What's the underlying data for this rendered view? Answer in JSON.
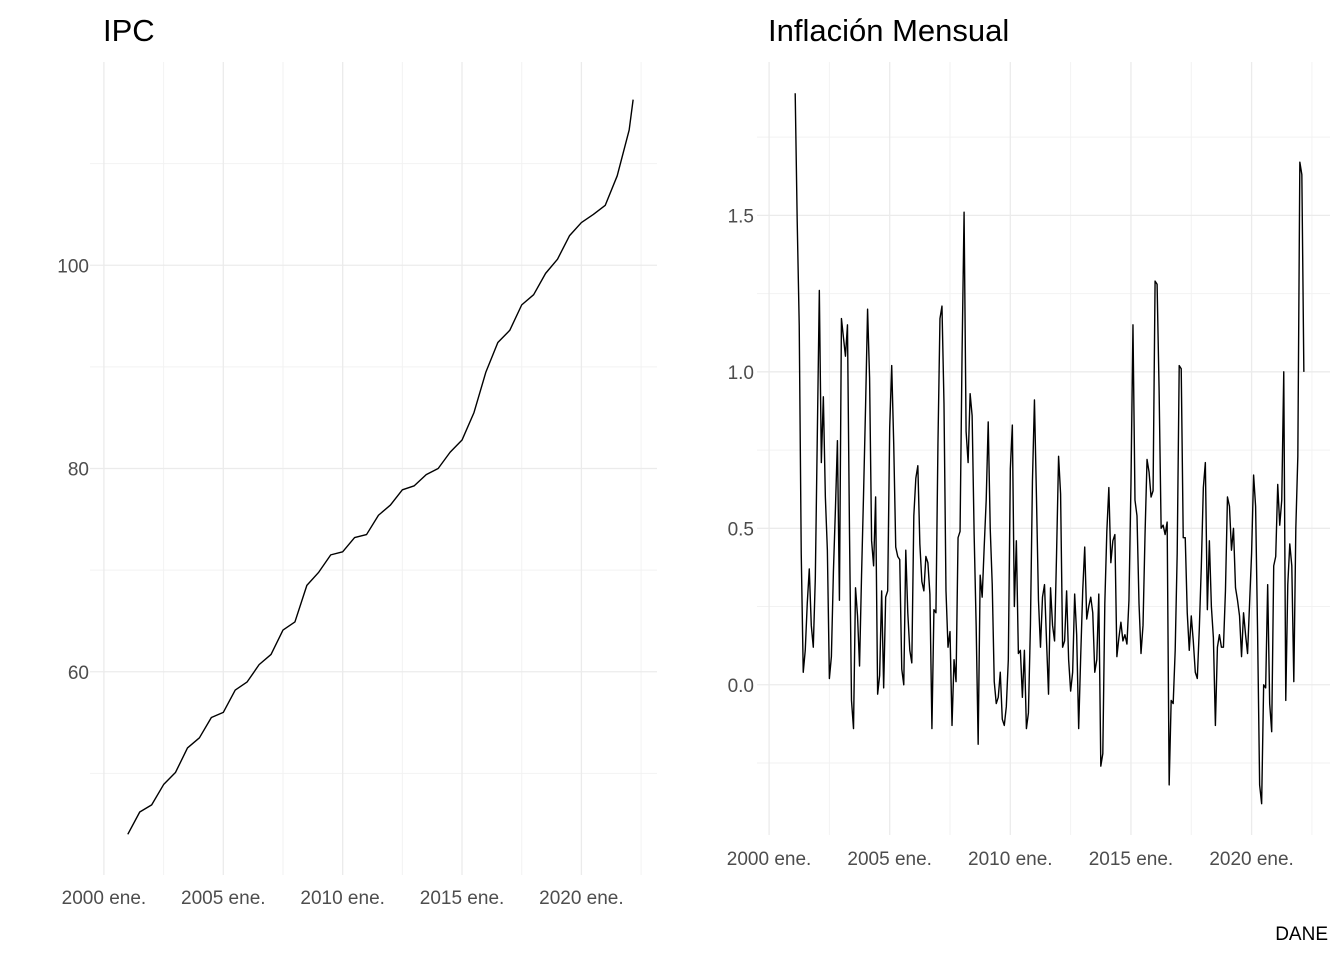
{
  "chart_data": [
    {
      "type": "line",
      "title": "IPC",
      "color": "#000000",
      "grid": true,
      "xlim": [
        "1999-06",
        "2023-03"
      ],
      "ylim": [
        40,
        120
      ],
      "yticks": [
        60,
        80,
        100
      ],
      "xticks": [
        {
          "value": "2000-01",
          "label": "2000 ene."
        },
        {
          "value": "2005-01",
          "label": "2005 ene."
        },
        {
          "value": "2010-01",
          "label": "2010 ene."
        },
        {
          "value": "2015-01",
          "label": "2015 ene."
        },
        {
          "value": "2020-01",
          "label": "2020 ene."
        }
      ],
      "x": [
        "2001-01",
        "2001-07",
        "2002-01",
        "2002-07",
        "2003-01",
        "2003-07",
        "2004-01",
        "2004-07",
        "2005-01",
        "2005-07",
        "2006-01",
        "2006-07",
        "2007-01",
        "2007-07",
        "2008-01",
        "2008-07",
        "2009-01",
        "2009-07",
        "2010-01",
        "2010-07",
        "2011-01",
        "2011-07",
        "2012-01",
        "2012-07",
        "2013-01",
        "2013-07",
        "2014-01",
        "2014-07",
        "2015-01",
        "2015-07",
        "2016-01",
        "2016-07",
        "2017-01",
        "2017-07",
        "2018-01",
        "2018-07",
        "2019-01",
        "2019-07",
        "2020-01",
        "2020-07",
        "2021-01",
        "2021-07",
        "2022-01",
        "2022-03"
      ],
      "values": [
        44.0,
        46.2,
        46.9,
        48.9,
        50.1,
        52.5,
        53.5,
        55.5,
        56.0,
        58.2,
        59.0,
        60.7,
        61.7,
        64.1,
        64.9,
        68.5,
        69.8,
        71.5,
        71.8,
        73.2,
        73.5,
        75.4,
        76.4,
        77.9,
        78.3,
        79.4,
        80.0,
        81.6,
        82.8,
        85.5,
        89.5,
        92.4,
        93.6,
        96.1,
        97.1,
        99.2,
        100.6,
        102.9,
        104.2,
        105.0,
        105.9,
        108.8,
        113.3,
        116.3
      ]
    },
    {
      "type": "line",
      "title": "Inflación Mensual",
      "caption": "DANE",
      "color": "#000000",
      "grid": true,
      "xlim": [
        "1999-07",
        "2023-04"
      ],
      "ylim": [
        -0.48,
        1.99
      ],
      "yticks": [
        {
          "value": 0,
          "label": "0.0"
        },
        0.5,
        {
          "value": 1,
          "label": "1.0"
        },
        1.5
      ],
      "xticks": [
        {
          "value": "2000-01",
          "label": "2000 ene."
        },
        {
          "value": "2005-01",
          "label": "2005 ene."
        },
        {
          "value": "2010-01",
          "label": "2010 ene."
        },
        {
          "value": "2015-01",
          "label": "2015 ene."
        },
        {
          "value": "2020-01",
          "label": "2020 ene."
        }
      ],
      "x": [
        "2001-02",
        "2001-03",
        "2001-04",
        "2001-05",
        "2001-06",
        "2001-07",
        "2001-08",
        "2001-09",
        "2001-10",
        "2001-11",
        "2001-12",
        "2002-01",
        "2002-02",
        "2002-03",
        "2002-04",
        "2002-05",
        "2002-06",
        "2002-07",
        "2002-08",
        "2002-09",
        "2002-10",
        "2002-11",
        "2002-12",
        "2003-01",
        "2003-02",
        "2003-03",
        "2003-04",
        "2003-05",
        "2003-06",
        "2003-07",
        "2003-08",
        "2003-09",
        "2003-10",
        "2003-11",
        "2003-12",
        "2004-01",
        "2004-02",
        "2004-03",
        "2004-04",
        "2004-05",
        "2004-06",
        "2004-07",
        "2004-08",
        "2004-09",
        "2004-10",
        "2004-11",
        "2004-12",
        "2005-01",
        "2005-02",
        "2005-03",
        "2005-04",
        "2005-05",
        "2005-06",
        "2005-07",
        "2005-08",
        "2005-09",
        "2005-10",
        "2005-11",
        "2005-12",
        "2006-01",
        "2006-02",
        "2006-03",
        "2006-04",
        "2006-05",
        "2006-06",
        "2006-07",
        "2006-08",
        "2006-09",
        "2006-10",
        "2006-11",
        "2006-12",
        "2007-01",
        "2007-02",
        "2007-03",
        "2007-04",
        "2007-05",
        "2007-06",
        "2007-07",
        "2007-08",
        "2007-09",
        "2007-10",
        "2007-11",
        "2007-12",
        "2008-01",
        "2008-02",
        "2008-03",
        "2008-04",
        "2008-05",
        "2008-06",
        "2008-07",
        "2008-08",
        "2008-09",
        "2008-10",
        "2008-11",
        "2008-12",
        "2009-01",
        "2009-02",
        "2009-03",
        "2009-04",
        "2009-05",
        "2009-06",
        "2009-07",
        "2009-08",
        "2009-09",
        "2009-10",
        "2009-11",
        "2009-12",
        "2010-01",
        "2010-02",
        "2010-03",
        "2010-04",
        "2010-05",
        "2010-06",
        "2010-07",
        "2010-08",
        "2010-09",
        "2010-10",
        "2010-11",
        "2010-12",
        "2011-01",
        "2011-02",
        "2011-03",
        "2011-04",
        "2011-05",
        "2011-06",
        "2011-07",
        "2011-08",
        "2011-09",
        "2011-10",
        "2011-11",
        "2011-12",
        "2012-01",
        "2012-02",
        "2012-03",
        "2012-04",
        "2012-05",
        "2012-06",
        "2012-07",
        "2012-08",
        "2012-09",
        "2012-10",
        "2012-11",
        "2012-12",
        "2013-01",
        "2013-02",
        "2013-03",
        "2013-04",
        "2013-05",
        "2013-06",
        "2013-07",
        "2013-08",
        "2013-09",
        "2013-10",
        "2013-11",
        "2013-12",
        "2014-01",
        "2014-02",
        "2014-03",
        "2014-04",
        "2014-05",
        "2014-06",
        "2014-07",
        "2014-08",
        "2014-09",
        "2014-10",
        "2014-11",
        "2014-12",
        "2015-01",
        "2015-02",
        "2015-03",
        "2015-04",
        "2015-05",
        "2015-06",
        "2015-07",
        "2015-08",
        "2015-09",
        "2015-10",
        "2015-11",
        "2015-12",
        "2016-01",
        "2016-02",
        "2016-03",
        "2016-04",
        "2016-05",
        "2016-06",
        "2016-07",
        "2016-08",
        "2016-09",
        "2016-10",
        "2016-11",
        "2016-12",
        "2017-01",
        "2017-02",
        "2017-03",
        "2017-04",
        "2017-05",
        "2017-06",
        "2017-07",
        "2017-08",
        "2017-09",
        "2017-10",
        "2017-11",
        "2017-12",
        "2018-01",
        "2018-02",
        "2018-03",
        "2018-04",
        "2018-05",
        "2018-06",
        "2018-07",
        "2018-08",
        "2018-09",
        "2018-10",
        "2018-11",
        "2018-12",
        "2019-01",
        "2019-02",
        "2019-03",
        "2019-04",
        "2019-05",
        "2019-06",
        "2019-07",
        "2019-08",
        "2019-09",
        "2019-10",
        "2019-11",
        "2019-12",
        "2020-01",
        "2020-02",
        "2020-03",
        "2020-04",
        "2020-05",
        "2020-06",
        "2020-07",
        "2020-08",
        "2020-09",
        "2020-10",
        "2020-11",
        "2020-12",
        "2021-01",
        "2021-02",
        "2021-03",
        "2021-04",
        "2021-05",
        "2021-06",
        "2021-07",
        "2021-08",
        "2021-09",
        "2021-10",
        "2021-11",
        "2021-12",
        "2022-01",
        "2022-02",
        "2022-03"
      ],
      "values": [
        1.89,
        1.48,
        1.15,
        0.42,
        0.04,
        0.11,
        0.26,
        0.37,
        0.19,
        0.12,
        0.34,
        0.8,
        1.26,
        0.71,
        0.92,
        0.6,
        0.43,
        0.02,
        0.09,
        0.36,
        0.56,
        0.78,
        0.27,
        1.17,
        1.11,
        1.05,
        1.15,
        0.49,
        -0.05,
        -0.14,
        0.31,
        0.22,
        0.06,
        0.35,
        0.61,
        0.89,
        1.2,
        0.98,
        0.46,
        0.38,
        0.6,
        -0.03,
        0.03,
        0.3,
        -0.01,
        0.28,
        0.3,
        0.82,
        1.02,
        0.77,
        0.44,
        0.41,
        0.4,
        0.05,
        0.0,
        0.43,
        0.23,
        0.11,
        0.07,
        0.54,
        0.66,
        0.7,
        0.45,
        0.33,
        0.3,
        0.41,
        0.39,
        0.29,
        -0.14,
        0.24,
        0.23,
        0.77,
        1.17,
        1.21,
        0.9,
        0.3,
        0.12,
        0.17,
        -0.13,
        0.08,
        0.01,
        0.47,
        0.49,
        1.06,
        1.51,
        0.81,
        0.71,
        0.93,
        0.86,
        0.48,
        0.19,
        -0.19,
        0.35,
        0.28,
        0.44,
        0.59,
        0.84,
        0.5,
        0.32,
        0.01,
        -0.06,
        -0.04,
        0.04,
        -0.11,
        -0.13,
        -0.07,
        0.08,
        0.69,
        0.83,
        0.25,
        0.46,
        0.1,
        0.11,
        -0.04,
        0.11,
        -0.14,
        -0.09,
        0.19,
        0.65,
        0.91,
        0.6,
        0.27,
        0.12,
        0.28,
        0.32,
        0.14,
        -0.03,
        0.31,
        0.19,
        0.14,
        0.42,
        0.73,
        0.61,
        0.12,
        0.14,
        0.3,
        0.08,
        -0.02,
        0.04,
        0.29,
        0.16,
        -0.14,
        0.09,
        0.3,
        0.44,
        0.21,
        0.25,
        0.28,
        0.23,
        0.04,
        0.08,
        0.29,
        -0.26,
        -0.22,
        0.26,
        0.49,
        0.63,
        0.39,
        0.46,
        0.48,
        0.09,
        0.15,
        0.2,
        0.14,
        0.16,
        0.13,
        0.27,
        0.64,
        1.15,
        0.59,
        0.54,
        0.26,
        0.1,
        0.19,
        0.48,
        0.72,
        0.68,
        0.6,
        0.62,
        1.29,
        1.28,
        0.94,
        0.5,
        0.51,
        0.48,
        0.52,
        -0.32,
        -0.05,
        -0.06,
        0.11,
        0.42,
        1.02,
        1.01,
        0.47,
        0.47,
        0.23,
        0.11,
        0.22,
        0.14,
        0.04,
        0.02,
        0.18,
        0.38,
        0.63,
        0.71,
        0.24,
        0.46,
        0.25,
        0.15,
        -0.13,
        0.12,
        0.16,
        0.12,
        0.12,
        0.3,
        0.6,
        0.57,
        0.43,
        0.5,
        0.31,
        0.27,
        0.22,
        0.09,
        0.23,
        0.16,
        0.1,
        0.26,
        0.42,
        0.67,
        0.57,
        0.16,
        -0.32,
        -0.38,
        0.0,
        -0.01,
        0.32,
        -0.06,
        -0.15,
        0.38,
        0.41,
        0.64,
        0.51,
        0.59,
        1.0,
        -0.05,
        0.32,
        0.45,
        0.38,
        0.01,
        0.5,
        0.73,
        1.67,
        1.63,
        1.0
      ]
    }
  ]
}
